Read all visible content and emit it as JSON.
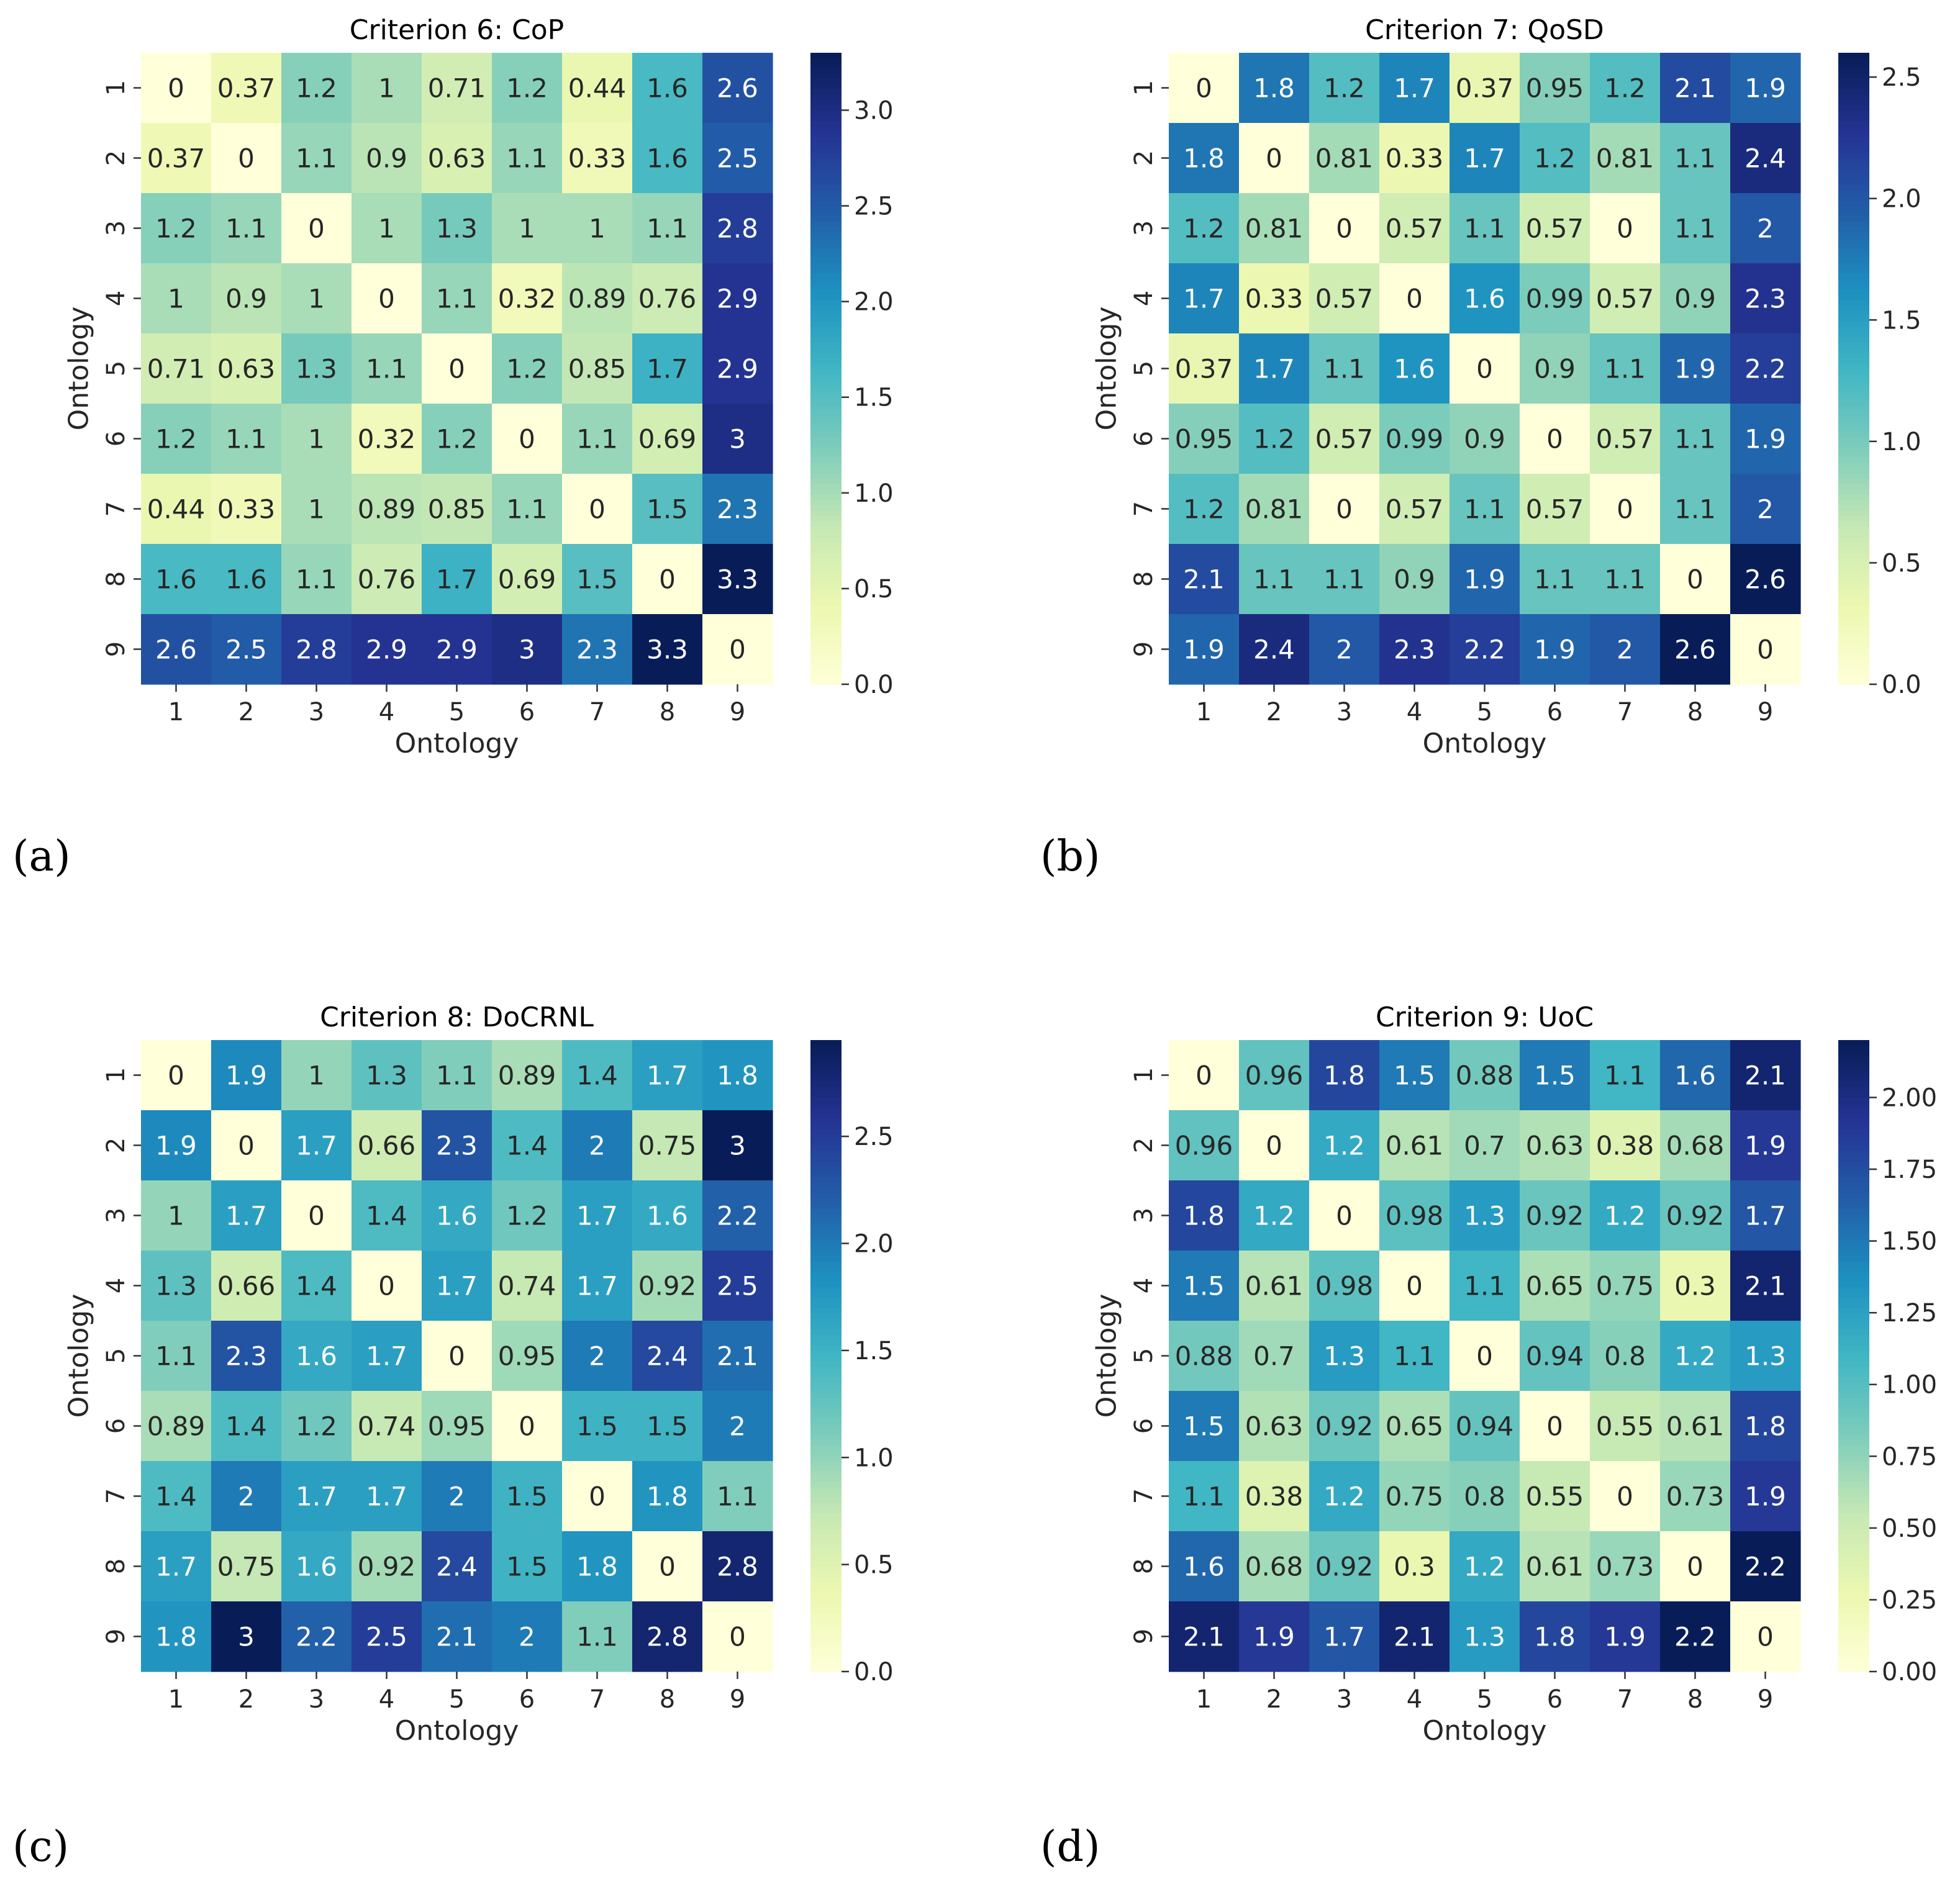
{
  "figure": {
    "panel_labels": [
      "(a)",
      "(b)",
      "(c)",
      "(d)"
    ]
  },
  "colormap": {
    "name": "YlGnBu",
    "stops": [
      "#ffffd9",
      "#edf8b1",
      "#c7e9b4",
      "#7fcdbb",
      "#41b6c4",
      "#1d91c0",
      "#225ea8",
      "#253494",
      "#081d58"
    ]
  },
  "chart_data": [
    {
      "type": "heatmap",
      "title": "Criterion 6: CoP",
      "xlabel": "Ontology",
      "ylabel": "Ontology",
      "x_ticks": [
        "1",
        "2",
        "3",
        "4",
        "5",
        "6",
        "7",
        "8",
        "9"
      ],
      "y_ticks": [
        "1",
        "2",
        "3",
        "4",
        "5",
        "6",
        "7",
        "8",
        "9"
      ],
      "vmin": 0,
      "vmax": 3.3,
      "colorbar_ticks": [
        0.0,
        0.5,
        1.0,
        1.5,
        2.0,
        2.5,
        3.0
      ],
      "colorbar_tick_labels": [
        "0.0",
        "0.5",
        "1.0",
        "1.5",
        "2.0",
        "2.5",
        "3.0"
      ],
      "values": [
        [
          0,
          0.37,
          1.2,
          1,
          0.71,
          1.2,
          0.44,
          1.6,
          2.6
        ],
        [
          0.37,
          0,
          1.1,
          0.9,
          0.63,
          1.1,
          0.33,
          1.6,
          2.5
        ],
        [
          1.2,
          1.1,
          0,
          1,
          1.3,
          1,
          1,
          1.1,
          2.8
        ],
        [
          1,
          0.9,
          1,
          0,
          1.1,
          0.32,
          0.89,
          0.76,
          2.9
        ],
        [
          0.71,
          0.63,
          1.3,
          1.1,
          0,
          1.2,
          0.85,
          1.7,
          2.9
        ],
        [
          1.2,
          1.1,
          1,
          0.32,
          1.2,
          0,
          1.1,
          0.69,
          3
        ],
        [
          0.44,
          0.33,
          1,
          0.89,
          0.85,
          1.1,
          0,
          1.5,
          2.3
        ],
        [
          1.6,
          1.6,
          1.1,
          0.76,
          1.7,
          0.69,
          1.5,
          0,
          3.3
        ],
        [
          2.6,
          2.5,
          2.8,
          2.9,
          2.9,
          3,
          2.3,
          3.3,
          0
        ]
      ]
    },
    {
      "type": "heatmap",
      "title": "Criterion 7: QoSD",
      "xlabel": "Ontology",
      "ylabel": "Ontology",
      "x_ticks": [
        "1",
        "2",
        "3",
        "4",
        "5",
        "6",
        "7",
        "8",
        "9"
      ],
      "y_ticks": [
        "1",
        "2",
        "3",
        "4",
        "5",
        "6",
        "7",
        "8",
        "9"
      ],
      "vmin": 0,
      "vmax": 2.6,
      "colorbar_ticks": [
        0.0,
        0.5,
        1.0,
        1.5,
        2.0,
        2.5
      ],
      "colorbar_tick_labels": [
        "0.0",
        "0.5",
        "1.0",
        "1.5",
        "2.0",
        "2.5"
      ],
      "values": [
        [
          0,
          1.8,
          1.2,
          1.7,
          0.37,
          0.95,
          1.2,
          2.1,
          1.9
        ],
        [
          1.8,
          0,
          0.81,
          0.33,
          1.7,
          1.2,
          0.81,
          1.1,
          2.4
        ],
        [
          1.2,
          0.81,
          0,
          0.57,
          1.1,
          0.57,
          0,
          1.1,
          2
        ],
        [
          1.7,
          0.33,
          0.57,
          0,
          1.6,
          0.99,
          0.57,
          0.9,
          2.3
        ],
        [
          0.37,
          1.7,
          1.1,
          1.6,
          0,
          0.9,
          1.1,
          1.9,
          2.2
        ],
        [
          0.95,
          1.2,
          0.57,
          0.99,
          0.9,
          0,
          0.57,
          1.1,
          1.9
        ],
        [
          1.2,
          0.81,
          0,
          0.57,
          1.1,
          0.57,
          0,
          1.1,
          2
        ],
        [
          2.1,
          1.1,
          1.1,
          0.9,
          1.9,
          1.1,
          1.1,
          0,
          2.6
        ],
        [
          1.9,
          2.4,
          2,
          2.3,
          2.2,
          1.9,
          2,
          2.6,
          0
        ]
      ]
    },
    {
      "type": "heatmap",
      "title": "Criterion 8: DoCRNL",
      "xlabel": "Ontology",
      "ylabel": "Ontology",
      "x_ticks": [
        "1",
        "2",
        "3",
        "4",
        "5",
        "6",
        "7",
        "8",
        "9"
      ],
      "y_ticks": [
        "1",
        "2",
        "3",
        "4",
        "5",
        "6",
        "7",
        "8",
        "9"
      ],
      "vmin": 0,
      "vmax": 2.95,
      "colorbar_ticks": [
        0.0,
        0.5,
        1.0,
        1.5,
        2.0,
        2.5
      ],
      "colorbar_tick_labels": [
        "0.0",
        "0.5",
        "1.0",
        "1.5",
        "2.0",
        "2.5"
      ],
      "values": [
        [
          0,
          1.9,
          1,
          1.3,
          1.1,
          0.89,
          1.4,
          1.7,
          1.8
        ],
        [
          1.9,
          0,
          1.7,
          0.66,
          2.3,
          1.4,
          2,
          0.75,
          3
        ],
        [
          1,
          1.7,
          0,
          1.4,
          1.6,
          1.2,
          1.7,
          1.6,
          2.2
        ],
        [
          1.3,
          0.66,
          1.4,
          0,
          1.7,
          0.74,
          1.7,
          0.92,
          2.5
        ],
        [
          1.1,
          2.3,
          1.6,
          1.7,
          0,
          0.95,
          2,
          2.4,
          2.1
        ],
        [
          0.89,
          1.4,
          1.2,
          0.74,
          0.95,
          0,
          1.5,
          1.5,
          2
        ],
        [
          1.4,
          2,
          1.7,
          1.7,
          2,
          1.5,
          0,
          1.8,
          1.1
        ],
        [
          1.7,
          0.75,
          1.6,
          0.92,
          2.4,
          1.5,
          1.8,
          0,
          2.8
        ],
        [
          1.8,
          3,
          2.2,
          2.5,
          2.1,
          2,
          1.1,
          2.8,
          0
        ]
      ]
    },
    {
      "type": "heatmap",
      "title": "Criterion 9: UoC",
      "xlabel": "Ontology",
      "ylabel": "Ontology",
      "x_ticks": [
        "1",
        "2",
        "3",
        "4",
        "5",
        "6",
        "7",
        "8",
        "9"
      ],
      "y_ticks": [
        "1",
        "2",
        "3",
        "4",
        "5",
        "6",
        "7",
        "8",
        "9"
      ],
      "vmin": 0,
      "vmax": 2.2,
      "colorbar_ticks": [
        0.0,
        0.25,
        0.5,
        0.75,
        1.0,
        1.25,
        1.5,
        1.75,
        2.0
      ],
      "colorbar_tick_labels": [
        "0.00",
        "0.25",
        "0.50",
        "0.75",
        "1.00",
        "1.25",
        "1.50",
        "1.75",
        "2.00"
      ],
      "values": [
        [
          0,
          0.96,
          1.8,
          1.5,
          0.88,
          1.5,
          1.1,
          1.6,
          2.1
        ],
        [
          0.96,
          0,
          1.2,
          0.61,
          0.7,
          0.63,
          0.38,
          0.68,
          1.9
        ],
        [
          1.8,
          1.2,
          0,
          0.98,
          1.3,
          0.92,
          1.2,
          0.92,
          1.7
        ],
        [
          1.5,
          0.61,
          0.98,
          0,
          1.1,
          0.65,
          0.75,
          0.3,
          2.1
        ],
        [
          0.88,
          0.7,
          1.3,
          1.1,
          0,
          0.94,
          0.8,
          1.2,
          1.3
        ],
        [
          1.5,
          0.63,
          0.92,
          0.65,
          0.94,
          0,
          0.55,
          0.61,
          1.8
        ],
        [
          1.1,
          0.38,
          1.2,
          0.75,
          0.8,
          0.55,
          0,
          0.73,
          1.9
        ],
        [
          1.6,
          0.68,
          0.92,
          0.3,
          1.2,
          0.61,
          0.73,
          0,
          2.2
        ],
        [
          2.1,
          1.9,
          1.7,
          2.1,
          1.3,
          1.8,
          1.9,
          2.2,
          0
        ]
      ]
    }
  ]
}
